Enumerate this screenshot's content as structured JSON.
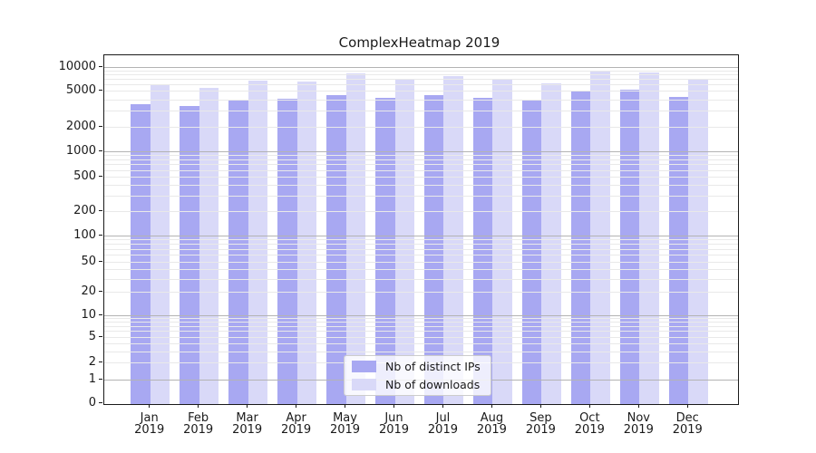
{
  "page": {
    "title": "ComplexHeatmap 2019"
  },
  "chart_data": {
    "type": "bar",
    "title": "ComplexHeatmap 2019",
    "x_year": "2019",
    "categories": [
      "Jan",
      "Feb",
      "Mar",
      "Apr",
      "May",
      "Jun",
      "Jul",
      "Aug",
      "Sep",
      "Oct",
      "Nov",
      "Dec"
    ],
    "series": [
      {
        "name": "Nb of distinct IPs",
        "color": "#a8a8f2",
        "values": [
          3600,
          3390,
          3950,
          4100,
          4540,
          4170,
          4540,
          4230,
          4010,
          4910,
          5180,
          4330
        ]
      },
      {
        "name": "Nb of downloads",
        "color": "#d9d9f8",
        "values": [
          6050,
          5440,
          6780,
          6600,
          8440,
          6900,
          7740,
          7020,
          6310,
          9000,
          8660,
          7090
        ]
      }
    ],
    "yscale": "symlog",
    "yticks": [
      0,
      1,
      2,
      5,
      10,
      20,
      50,
      100,
      200,
      500,
      1000,
      2000,
      5000,
      10000
    ],
    "ylim": [
      0,
      14000
    ],
    "grid": true,
    "colors": {
      "grid_major": "#b3b3b3",
      "grid_minor": "#e9e9e9",
      "axis": "#1a1a1a",
      "text": "#1a1a1a"
    },
    "legend_position": "lower center"
  }
}
